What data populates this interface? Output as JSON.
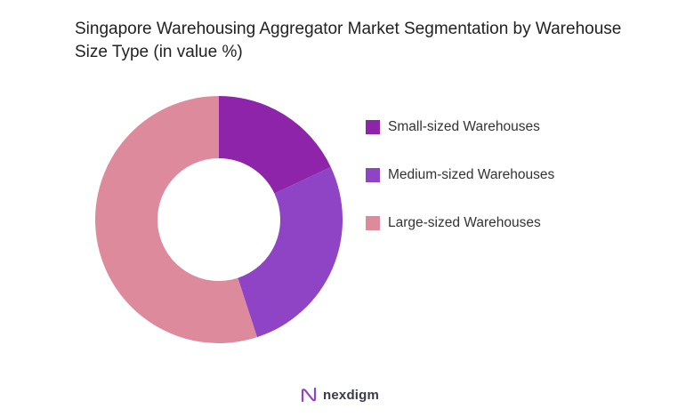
{
  "chart_data": {
    "type": "pie",
    "title": "Singapore Warehousing Aggregator Market Segmentation by Warehouse Size Type (in value %)",
    "donut": true,
    "legend_position": "right",
    "slices": [
      {
        "label": "Small-sized Warehouses",
        "value": 18,
        "color": "#8e24aa"
      },
      {
        "label": "Medium-sized Warehouses",
        "value": 27,
        "color": "#8e44c4"
      },
      {
        "label": "Large-sized Warehouses",
        "value": 55,
        "color": "#de8a9d"
      }
    ]
  },
  "branding": {
    "logo_text": "nexdigm",
    "logo_icon": "nexdigm-logo-icon",
    "logo_color": "#8e44c4"
  }
}
